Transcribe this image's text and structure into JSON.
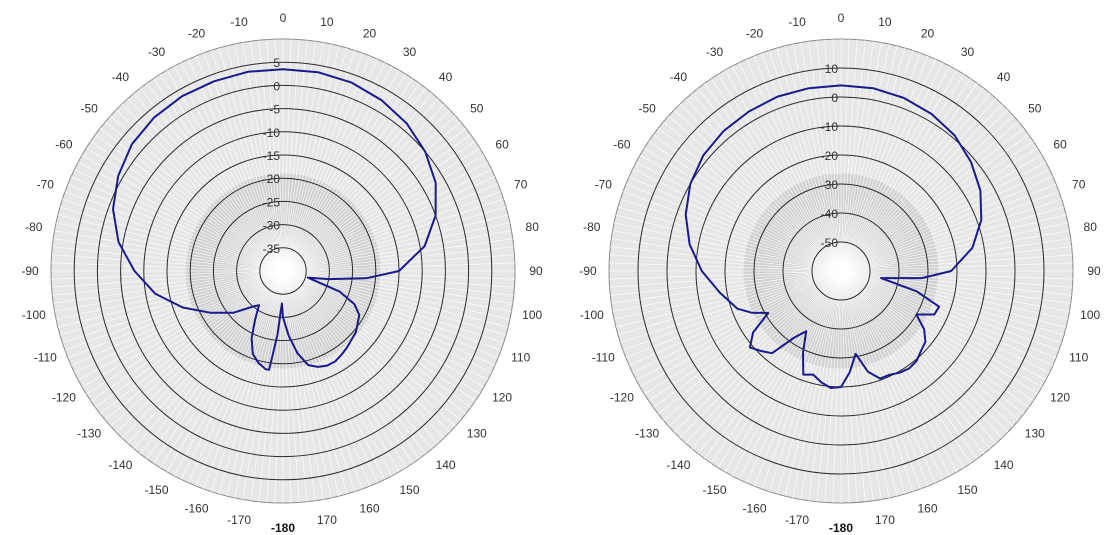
{
  "chart_data": [
    {
      "type": "polar-line",
      "title": "",
      "angle_labels": [
        "0",
        "10",
        "20",
        "30",
        "40",
        "50",
        "60",
        "70",
        "80",
        "90",
        "100",
        "110",
        "120",
        "130",
        "140",
        "150",
        "160",
        "170",
        "-180",
        "-170",
        "-160",
        "-150",
        "-140",
        "-130",
        "-120",
        "-110",
        "-100",
        "-90",
        "-80",
        "-70",
        "-60",
        "-50",
        "-40",
        "-30",
        "-20",
        "-10"
      ],
      "angle_values": [
        0,
        10,
        20,
        30,
        40,
        50,
        60,
        70,
        80,
        90,
        100,
        110,
        120,
        130,
        140,
        150,
        160,
        170,
        180,
        -170,
        -160,
        -150,
        -140,
        -130,
        -120,
        -110,
        -100,
        -90,
        -80,
        -70,
        -60,
        -50,
        -40,
        -30,
        -20,
        -10
      ],
      "r_labels": [
        "5",
        "0",
        "-5",
        "-10",
        "-15",
        "-20",
        "-25",
        "-30",
        "-35"
      ],
      "r_values": [
        5,
        0,
        -5,
        -10,
        -15,
        -20,
        -25,
        -30,
        -35
      ],
      "r_range": [
        -40,
        10
      ],
      "grid": true,
      "series": [
        {
          "color": "#1a1a8c",
          "angles": [
            0,
            10,
            20,
            30,
            40,
            50,
            60,
            70,
            80,
            90,
            95,
            100,
            105,
            110,
            115,
            120,
            130,
            140,
            145,
            150,
            155,
            160,
            165,
            170,
            175,
            180,
            -178,
            -175,
            -172,
            -170,
            -165,
            -160,
            -155,
            -150,
            -145,
            -140,
            -130,
            -120,
            -110,
            -100,
            -90,
            -80,
            -70,
            -60,
            -50,
            -40,
            -30,
            -20,
            -10,
            0
          ],
          "values": [
            3.5,
            3.5,
            3.2,
            2.5,
            1.5,
            0.0,
            -2.0,
            -5.0,
            -9.0,
            -15.0,
            -22.0,
            -30.0,
            -34.5,
            -27.0,
            -23.0,
            -21.0,
            -19.5,
            -18.5,
            -18.0,
            -17.5,
            -17.5,
            -18.0,
            -19.0,
            -22.0,
            -26.0,
            -30.0,
            -33.0,
            -26.0,
            -18.5,
            -18.5,
            -19.5,
            -21.0,
            -24.0,
            -28.0,
            -31.0,
            -30.0,
            -26.0,
            -22.0,
            -17.0,
            -12.0,
            -8.0,
            -4.0,
            -1.0,
            1.0,
            2.5,
            3.2,
            3.5,
            3.5,
            3.6,
            3.5
          ]
        }
      ]
    },
    {
      "type": "polar-line",
      "title": "",
      "angle_labels": [
        "0",
        "10",
        "20",
        "30",
        "40",
        "50",
        "60",
        "70",
        "80",
        "90",
        "100",
        "110",
        "120",
        "130",
        "140",
        "150",
        "160",
        "170",
        "-180",
        "-170",
        "-160",
        "-150",
        "-140",
        "-130",
        "-120",
        "-110",
        "-100",
        "-90",
        "-80",
        "-70",
        "-60",
        "-50",
        "-40",
        "-30",
        "-20",
        "-10"
      ],
      "angle_values": [
        0,
        10,
        20,
        30,
        40,
        50,
        60,
        70,
        80,
        90,
        100,
        110,
        120,
        130,
        140,
        150,
        160,
        170,
        180,
        -170,
        -160,
        -150,
        -140,
        -130,
        -120,
        -110,
        -100,
        -90,
        -80,
        -70,
        -60,
        -50,
        -40,
        -30,
        -20,
        -10
      ],
      "r_labels": [
        "10",
        "0",
        "-10",
        "-20",
        "-30",
        "-40",
        "-50"
      ],
      "r_values": [
        10,
        0,
        -10,
        -20,
        -30,
        -40,
        -50
      ],
      "r_range": [
        -60,
        20
      ],
      "grid": true,
      "series": [
        {
          "color": "#1a1a8c",
          "angles": [
            0,
            10,
            20,
            30,
            40,
            50,
            60,
            70,
            80,
            90,
            95,
            100,
            105,
            110,
            115,
            120,
            125,
            130,
            135,
            140,
            145,
            150,
            155,
            160,
            165,
            170,
            175,
            180,
            -175,
            -170,
            -165,
            -160,
            -155,
            -150,
            -145,
            -140,
            -135,
            -130,
            -125,
            -120,
            -115,
            -110,
            -100,
            -90,
            -80,
            -70,
            -60,
            -50,
            -40,
            -30,
            -20,
            -10,
            0
          ],
          "values": [
            4,
            4,
            3.5,
            2.5,
            1,
            -1.5,
            -4.5,
            -8.5,
            -14,
            -22,
            -32,
            -46,
            -33,
            -24,
            -24.5,
            -30,
            -25,
            -22,
            -21,
            -19.5,
            -19,
            -19.5,
            -20.5,
            -20.5,
            -24,
            -31,
            -25,
            -20,
            -19.5,
            -21,
            -23,
            -22,
            -29,
            -36,
            -32,
            -23,
            -21,
            -19,
            -23,
            -31,
            -26,
            -22,
            -17.5,
            -12,
            -7,
            -3,
            0,
            2,
            3,
            3.5,
            4,
            4,
            4
          ]
        }
      ]
    }
  ]
}
